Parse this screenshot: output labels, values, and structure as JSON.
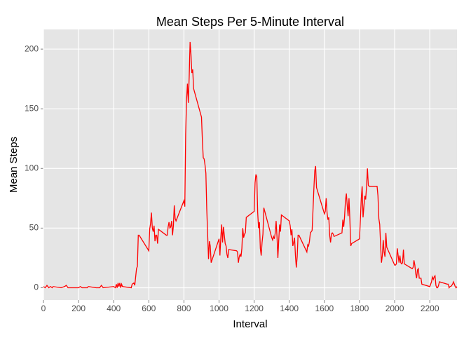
{
  "chart_data": {
    "type": "line",
    "title": "Mean Steps Per 5-Minute Interval",
    "x_label": "Interval",
    "y_label": "Mean Steps",
    "x": [
      0,
      10,
      20,
      30,
      40,
      50,
      55,
      100,
      120,
      130,
      140,
      200,
      210,
      220,
      250,
      255,
      300,
      320,
      330,
      340,
      400,
      410,
      415,
      420,
      425,
      430,
      435,
      440,
      445,
      450,
      500,
      505,
      515,
      520,
      530,
      535,
      540,
      545,
      600,
      605,
      610,
      615,
      620,
      625,
      630,
      635,
      640,
      645,
      650,
      655,
      700,
      705,
      710,
      715,
      720,
      725,
      730,
      735,
      740,
      745,
      750,
      755,
      800,
      805,
      810,
      815,
      820,
      825,
      830,
      835,
      840,
      845,
      850,
      855,
      900,
      905,
      910,
      915,
      920,
      925,
      930,
      935,
      940,
      945,
      950,
      955,
      1000,
      1005,
      1010,
      1015,
      1020,
      1025,
      1030,
      1035,
      1040,
      1045,
      1050,
      1055,
      1100,
      1105,
      1110,
      1115,
      1120,
      1125,
      1130,
      1135,
      1140,
      1145,
      1150,
      1155,
      1200,
      1205,
      1210,
      1215,
      1220,
      1225,
      1230,
      1235,
      1240,
      1245,
      1250,
      1255,
      1300,
      1305,
      1310,
      1315,
      1320,
      1325,
      1330,
      1335,
      1340,
      1345,
      1350,
      1355,
      1400,
      1405,
      1410,
      1415,
      1420,
      1425,
      1430,
      1435,
      1440,
      1445,
      1450,
      1455,
      1500,
      1505,
      1510,
      1515,
      1520,
      1525,
      1530,
      1535,
      1540,
      1545,
      1550,
      1555,
      1600,
      1605,
      1610,
      1615,
      1620,
      1625,
      1630,
      1635,
      1640,
      1645,
      1650,
      1655,
      1700,
      1705,
      1710,
      1715,
      1720,
      1725,
      1730,
      1735,
      1740,
      1745,
      1750,
      1755,
      1800,
      1805,
      1810,
      1815,
      1820,
      1825,
      1830,
      1835,
      1840,
      1845,
      1850,
      1855,
      1900,
      1905,
      1910,
      1915,
      1920,
      1925,
      1930,
      1935,
      1940,
      1945,
      1950,
      1955,
      2000,
      2005,
      2010,
      2015,
      2020,
      2025,
      2030,
      2035,
      2040,
      2045,
      2050,
      2055,
      2100,
      2105,
      2110,
      2115,
      2120,
      2125,
      2130,
      2135,
      2140,
      2145,
      2150,
      2155,
      2200,
      2205,
      2210,
      2215,
      2220,
      2225,
      2230,
      2235,
      2240,
      2245,
      2250,
      2255,
      2300,
      2305,
      2310,
      2315,
      2320,
      2325,
      2330,
      2335,
      2340,
      2345,
      2350,
      2355
    ],
    "series": [
      {
        "color": "#ff0000",
        "values": [
          1,
          0,
          2,
          0,
          1,
          0,
          1,
          0,
          1,
          2,
          0,
          0,
          1,
          0,
          0,
          1,
          0,
          0,
          2,
          0,
          1,
          0,
          3,
          0,
          4,
          1,
          4,
          0,
          3,
          1,
          0,
          3,
          4,
          2,
          16,
          18,
          44,
          44,
          31,
          49,
          54,
          63,
          50,
          47,
          52,
          39,
          44,
          44,
          37,
          49,
          44,
          44,
          51,
          55,
          50,
          51,
          56,
          44,
          52,
          69,
          58,
          56,
          73,
          68,
          129,
          158,
          171,
          155,
          177,
          206,
          196,
          180,
          183,
          167,
          143,
          124,
          109,
          108,
          103,
          96,
          66,
          45,
          24,
          39,
          35,
          21,
          41,
          27,
          42,
          53,
          38,
          51,
          44,
          37,
          35,
          28,
          25,
          32,
          31,
          30,
          21,
          26,
          28,
          26,
          33,
          50,
          42,
          45,
          46,
          59,
          64,
          88,
          95,
          93,
          63,
          50,
          55,
          33,
          27,
          38,
          45,
          67,
          42,
          40,
          43,
          41,
          46,
          56,
          43,
          25,
          40,
          53,
          47,
          61,
          56,
          52,
          44,
          49,
          35,
          38,
          42,
          27,
          17,
          26,
          44,
          44,
          30,
          36,
          35,
          39,
          46,
          47,
          48,
          65,
          83,
          98,
          102,
          84,
          62,
          64,
          75,
          63,
          57,
          59,
          44,
          38,
          45,
          46,
          45,
          43,
          46,
          57,
          51,
          60,
          73,
          79,
          69,
          60,
          75,
          57,
          35,
          37,
          41,
          58,
          75,
          85,
          59,
          68,
          77,
          74,
          85,
          100,
          86,
          85,
          85,
          77,
          58,
          53,
          36,
          21,
          27,
          40,
          30,
          26,
          46,
          34,
          19,
          19,
          20,
          33,
          27,
          21,
          27,
          21,
          20,
          21,
          32,
          20,
          16,
          17,
          23,
          19,
          12,
          8,
          15,
          16,
          8,
          8,
          8,
          3,
          1,
          3,
          5,
          9,
          7,
          9,
          10,
          2,
          0,
          0,
          2,
          5,
          3,
          3,
          0,
          1,
          1,
          2,
          3,
          5,
          3,
          1,
          0,
          1
        ]
      }
    ],
    "xlim": [
      0,
      2355
    ],
    "ylim": [
      -10.3,
      216.5
    ],
    "xticks": [
      0,
      200,
      400,
      600,
      800,
      1000,
      1200,
      1400,
      1600,
      1800,
      2000,
      2200
    ],
    "yticks": [
      0,
      50,
      100,
      150,
      200
    ],
    "grid": true
  }
}
